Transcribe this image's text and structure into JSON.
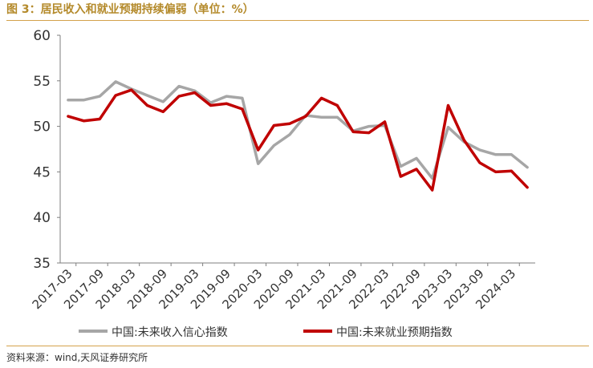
{
  "header": {
    "title": "图 3：居民收入和就业预期持续偏弱（单位：%）"
  },
  "footer": {
    "source": "资料来源：wind,天风证券研究所"
  },
  "colors": {
    "income": "#a6a6a6",
    "employment": "#c00000",
    "accent": "#d4a24c"
  },
  "chart_data": {
    "type": "line",
    "title": "图 3：居民收入和就业预期持续偏弱（单位：%）",
    "ylim": [
      35,
      60
    ],
    "yticks": [
      35,
      40,
      45,
      50,
      55,
      60
    ],
    "x": [
      "2017-03",
      "2017-06",
      "2017-09",
      "2017-12",
      "2018-03",
      "2018-06",
      "2018-09",
      "2018-12",
      "2019-03",
      "2019-06",
      "2019-09",
      "2019-12",
      "2020-03",
      "2020-06",
      "2020-09",
      "2020-12",
      "2021-03",
      "2021-06",
      "2021-09",
      "2021-12",
      "2022-03",
      "2022-06",
      "2022-09",
      "2022-12",
      "2023-03",
      "2023-06",
      "2023-09",
      "2023-12",
      "2024-03",
      "2024-06"
    ],
    "xtick_labels": [
      "2017-03",
      "2017-09",
      "2018-03",
      "2018-09",
      "2019-03",
      "2019-09",
      "2020-03",
      "2020-09",
      "2021-03",
      "2021-09",
      "2022-03",
      "2022-09",
      "2023-03",
      "2023-09",
      "2024-03"
    ],
    "legend_position": "bottom",
    "grid": false,
    "series": [
      {
        "name": "中国:未来收入信心指数",
        "values": [
          52.9,
          52.9,
          53.3,
          54.9,
          54.1,
          53.4,
          52.7,
          54.4,
          53.9,
          52.6,
          53.3,
          53.1,
          45.9,
          47.9,
          49.1,
          51.2,
          51.0,
          51.0,
          49.5,
          50.0,
          50.1,
          45.6,
          46.5,
          44.3,
          49.9,
          48.3,
          47.4,
          46.9,
          46.9,
          45.5
        ]
      },
      {
        "name": "中国:未来就业预期指数",
        "values": [
          51.1,
          50.6,
          50.8,
          53.4,
          54.0,
          52.3,
          51.6,
          53.3,
          53.7,
          52.3,
          52.5,
          51.9,
          47.4,
          50.1,
          50.3,
          51.1,
          53.1,
          52.3,
          49.4,
          49.3,
          50.5,
          44.5,
          45.3,
          43.0,
          52.3,
          48.5,
          46.0,
          45.0,
          45.1,
          43.3
        ]
      }
    ]
  }
}
